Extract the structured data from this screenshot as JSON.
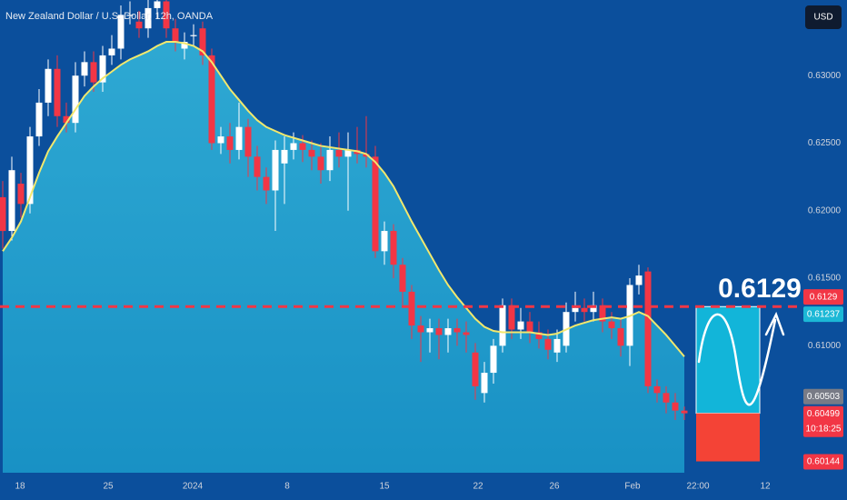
{
  "chart_data": {
    "type": "candlestick",
    "title": "New Zealand Dollar / U.S. Dollar, 12h, OANDA",
    "currency_button": "USD",
    "up_color": "#ffffff",
    "down_color": "#f23645",
    "ema_color": "#f2e86d",
    "area_color": "#1aa3cf",
    "x": [
      0,
      1,
      2,
      3,
      4,
      5,
      6,
      7,
      8,
      9,
      10,
      11,
      12,
      13,
      14,
      15,
      16,
      17,
      18,
      19,
      20,
      21,
      22,
      23,
      24,
      25,
      26,
      27,
      28,
      29,
      30,
      31,
      32,
      33,
      34,
      35,
      36,
      37,
      38,
      39,
      40,
      41,
      42,
      43,
      44,
      45,
      46,
      47,
      48,
      49,
      50,
      51,
      52,
      53,
      54,
      55,
      56,
      57,
      58,
      59,
      60,
      61,
      62,
      63,
      64,
      65,
      66,
      67,
      68,
      69,
      70,
      71,
      72,
      73,
      74,
      75
    ],
    "open": [
      0.621,
      0.6185,
      0.622,
      0.6205,
      0.6255,
      0.628,
      0.6305,
      0.627,
      0.6265,
      0.63,
      0.631,
      0.6295,
      0.6315,
      0.632,
      0.6345,
      0.634,
      0.6335,
      0.635,
      0.6355,
      0.6335,
      0.632,
      0.633,
      0.6335,
      0.6315,
      0.625,
      0.6255,
      0.6245,
      0.6262,
      0.624,
      0.6225,
      0.6215,
      0.6235,
      0.6245,
      0.625,
      0.6245,
      0.624,
      0.623,
      0.6245,
      0.624,
      0.6245,
      0.6242,
      0.624,
      0.617,
      0.6185,
      0.616,
      0.614,
      0.6115,
      0.611,
      0.6113,
      0.6108,
      0.6113,
      0.611,
      0.6095,
      0.6065,
      0.608,
      0.61,
      0.613,
      0.6112,
      0.6118,
      0.611,
      0.6105,
      0.6095,
      0.61,
      0.6125,
      0.6128,
      0.6125,
      0.613,
      0.6118,
      0.6113,
      0.61,
      0.6145,
      0.6155,
      0.607,
      0.6065,
      0.6058,
      0.6052
    ],
    "high": [
      0.6222,
      0.624,
      0.6228,
      0.6262,
      0.629,
      0.6312,
      0.6315,
      0.628,
      0.631,
      0.6318,
      0.6318,
      0.6322,
      0.633,
      0.6352,
      0.6355,
      0.6348,
      0.6358,
      0.6362,
      0.636,
      0.6342,
      0.6332,
      0.6338,
      0.634,
      0.632,
      0.6262,
      0.6265,
      0.628,
      0.6268,
      0.6248,
      0.6232,
      0.6252,
      0.6255,
      0.6258,
      0.6256,
      0.6252,
      0.625,
      0.6255,
      0.6258,
      0.6258,
      0.6262,
      0.627,
      0.6248,
      0.6192,
      0.619,
      0.6165,
      0.6145,
      0.6122,
      0.612,
      0.612,
      0.612,
      0.612,
      0.6118,
      0.6102,
      0.6088,
      0.6105,
      0.6135,
      0.6135,
      0.6128,
      0.6125,
      0.6118,
      0.6112,
      0.6112,
      0.6132,
      0.614,
      0.6135,
      0.614,
      0.6135,
      0.6125,
      0.612,
      0.615,
      0.616,
      0.6158,
      0.6075,
      0.607,
      0.6065,
      0.6055
    ],
    "low": [
      0.6172,
      0.6178,
      0.6195,
      0.6198,
      0.6248,
      0.627,
      0.6262,
      0.6258,
      0.6258,
      0.6292,
      0.6288,
      0.6288,
      0.6308,
      0.6312,
      0.6338,
      0.6328,
      0.6328,
      0.6342,
      0.6328,
      0.6318,
      0.6312,
      0.6322,
      0.6308,
      0.6245,
      0.6242,
      0.6235,
      0.6238,
      0.6225,
      0.6215,
      0.6205,
      0.6185,
      0.6205,
      0.6238,
      0.6236,
      0.623,
      0.622,
      0.6222,
      0.6232,
      0.62,
      0.6235,
      0.6232,
      0.6165,
      0.616,
      0.615,
      0.613,
      0.6105,
      0.6088,
      0.6095,
      0.609,
      0.6095,
      0.61,
      0.6095,
      0.606,
      0.6058,
      0.6072,
      0.6095,
      0.6105,
      0.6105,
      0.6102,
      0.6098,
      0.609,
      0.6088,
      0.6095,
      0.6118,
      0.6118,
      0.6118,
      0.611,
      0.6105,
      0.6092,
      0.6085,
      0.6138,
      0.6065,
      0.6058,
      0.605,
      0.6045,
      0.6045
    ],
    "close": [
      0.6185,
      0.623,
      0.6205,
      0.6255,
      0.628,
      0.6305,
      0.627,
      0.6265,
      0.63,
      0.631,
      0.6295,
      0.6315,
      0.632,
      0.6345,
      0.6345,
      0.6335,
      0.635,
      0.6355,
      0.6335,
      0.6325,
      0.6325,
      0.633,
      0.6315,
      0.625,
      0.6255,
      0.6245,
      0.6262,
      0.624,
      0.6225,
      0.6215,
      0.6245,
      0.6245,
      0.625,
      0.6245,
      0.624,
      0.623,
      0.6245,
      0.624,
      0.6245,
      0.6242,
      0.624,
      0.617,
      0.6185,
      0.616,
      0.614,
      0.6115,
      0.611,
      0.6113,
      0.6108,
      0.6113,
      0.611,
      0.6108,
      0.607,
      0.608,
      0.61,
      0.613,
      0.6112,
      0.6118,
      0.611,
      0.6105,
      0.6097,
      0.6105,
      0.6125,
      0.6128,
      0.6125,
      0.613,
      0.6118,
      0.6113,
      0.61,
      0.6145,
      0.6152,
      0.607,
      0.6065,
      0.6058,
      0.6052,
      0.605
    ],
    "ema": [
      0.617,
      0.618,
      0.6192,
      0.621,
      0.6228,
      0.6244,
      0.6255,
      0.6265,
      0.6275,
      0.6285,
      0.6292,
      0.6298,
      0.6303,
      0.6308,
      0.6312,
      0.6315,
      0.6318,
      0.6322,
      0.6325,
      0.6325,
      0.6324,
      0.6322,
      0.6318,
      0.631,
      0.63,
      0.629,
      0.6282,
      0.6274,
      0.6267,
      0.6262,
      0.6259,
      0.6256,
      0.6254,
      0.6252,
      0.625,
      0.6248,
      0.6247,
      0.6246,
      0.6245,
      0.6244,
      0.6242,
      0.6236,
      0.6228,
      0.6218,
      0.6205,
      0.6192,
      0.618,
      0.6168,
      0.6156,
      0.6145,
      0.6136,
      0.6128,
      0.612,
      0.6114,
      0.6111,
      0.611,
      0.611,
      0.611,
      0.611,
      0.6109,
      0.6108,
      0.6109,
      0.6112,
      0.6115,
      0.6117,
      0.6119,
      0.612,
      0.6121,
      0.612,
      0.6122,
      0.6125,
      0.6122,
      0.6115,
      0.6108,
      0.61,
      0.6092
    ],
    "xlim": [
      -0.3,
      88
    ],
    "xticks": [
      {
        "value": 1.9,
        "label": "18"
      },
      {
        "value": 11.6,
        "label": "25"
      },
      {
        "value": 20.9,
        "label": "2024"
      },
      {
        "value": 31.3,
        "label": "8"
      },
      {
        "value": 42,
        "label": "15"
      },
      {
        "value": 52.3,
        "label": "22"
      },
      {
        "value": 60.7,
        "label": "26"
      },
      {
        "value": 69.3,
        "label": "Feb"
      },
      {
        "value": 76.5,
        "label": "22:00"
      },
      {
        "value": 83.9,
        "label": "12"
      }
    ],
    "ylim": [
      0.6006,
      0.6356
    ],
    "yticks": [
      {
        "value": 0.61,
        "label": "0.61000"
      },
      {
        "value": 0.615,
        "label": "0.61500"
      },
      {
        "value": 0.62,
        "label": "0.62000"
      },
      {
        "value": 0.625,
        "label": "0.62500"
      },
      {
        "value": 0.63,
        "label": "0.63000"
      }
    ],
    "target": {
      "value": 0.6129,
      "label": "0.6129",
      "color": "#f23645"
    },
    "projection": {
      "x_range": [
        76.3,
        83.3
      ],
      "entry": 0.605,
      "stop": 0.60144,
      "up_color": "#12b5d9",
      "down_color": "#f44336"
    },
    "price_tags": [
      {
        "value": 0.61237,
        "label": "0.61237",
        "color": "#1cb8d6"
      },
      {
        "value": 0.60503,
        "label": "0.60503",
        "color": "#787b86"
      },
      {
        "value": 0.60499,
        "label": "0.60499",
        "sub": "10:18:25",
        "color": "#f23645"
      },
      {
        "value": 0.60144,
        "label": "0.60144",
        "color": "#f23645"
      }
    ]
  }
}
